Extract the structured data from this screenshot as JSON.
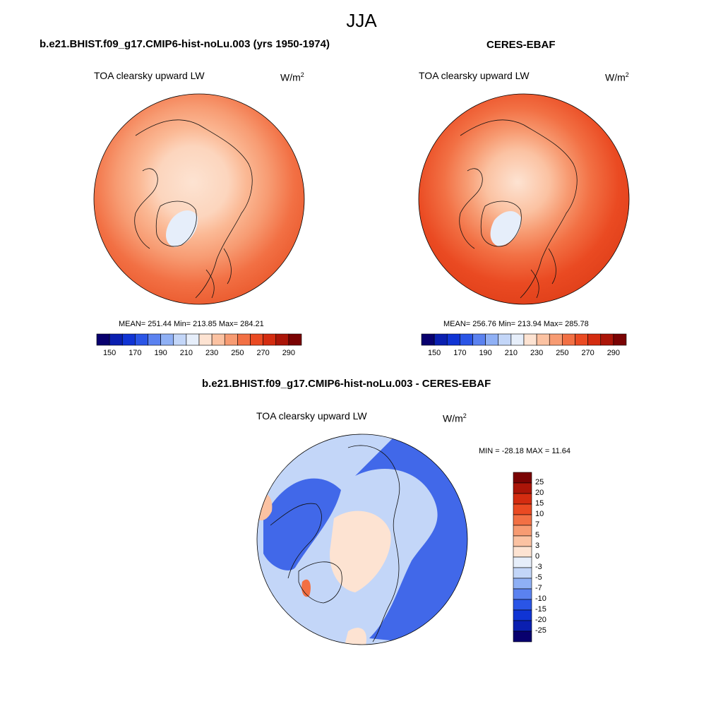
{
  "page_title": "JJA",
  "panels": [
    {
      "title": "b.e21.BHIST.f09_g17.CMIP6-hist-noLu.003 (yrs 1950-1974)",
      "variable": "TOA clearsky upward LW",
      "units_base": "W/m",
      "units_exp": "2",
      "stats": "MEAN= 251.44  Min= 213.85  Max= 284.21"
    },
    {
      "title": "CERES-EBAF",
      "variable": "TOA clearsky upward LW",
      "units_base": "W/m",
      "units_exp": "2",
      "stats": "MEAN= 256.76  Min= 213.94  Max= 285.78"
    }
  ],
  "diff_panel": {
    "title": "b.e21.BHIST.f09_g17.CMIP6-hist-noLu.003 - CERES-EBAF",
    "variable": "TOA clearsky upward LW",
    "units_base": "W/m",
    "units_exp": "2",
    "stats": "MIN = -28.18 MAX =  11.64"
  },
  "colorbar_abs": {
    "tick_labels": [
      "150",
      "170",
      "190",
      "210",
      "230",
      "250",
      "270",
      "290"
    ],
    "colors": [
      "#08006e",
      "#0a1fb0",
      "#1034d4",
      "#2a55e6",
      "#5b82f0",
      "#8fb0f5",
      "#c3d6f8",
      "#e6eefa",
      "#fde3d2",
      "#fbc2a2",
      "#f79b72",
      "#f27044",
      "#ea4a22",
      "#d42c10",
      "#ab1508",
      "#7a0303"
    ]
  },
  "colorbar_diff": {
    "tick_labels": [
      "25",
      "20",
      "15",
      "10",
      "7",
      "5",
      "3",
      "0",
      "-3",
      "-5",
      "-7",
      "-10",
      "-15",
      "-20",
      "-25"
    ],
    "colors": [
      "#7a0303",
      "#ab1508",
      "#d42c10",
      "#ea4a22",
      "#f27044",
      "#f79b72",
      "#fbc2a2",
      "#fde3d2",
      "#e6eefa",
      "#c3d6f8",
      "#8fb0f5",
      "#5b82f0",
      "#2a55e6",
      "#1034d4",
      "#0a1fb0",
      "#08006e"
    ]
  }
}
